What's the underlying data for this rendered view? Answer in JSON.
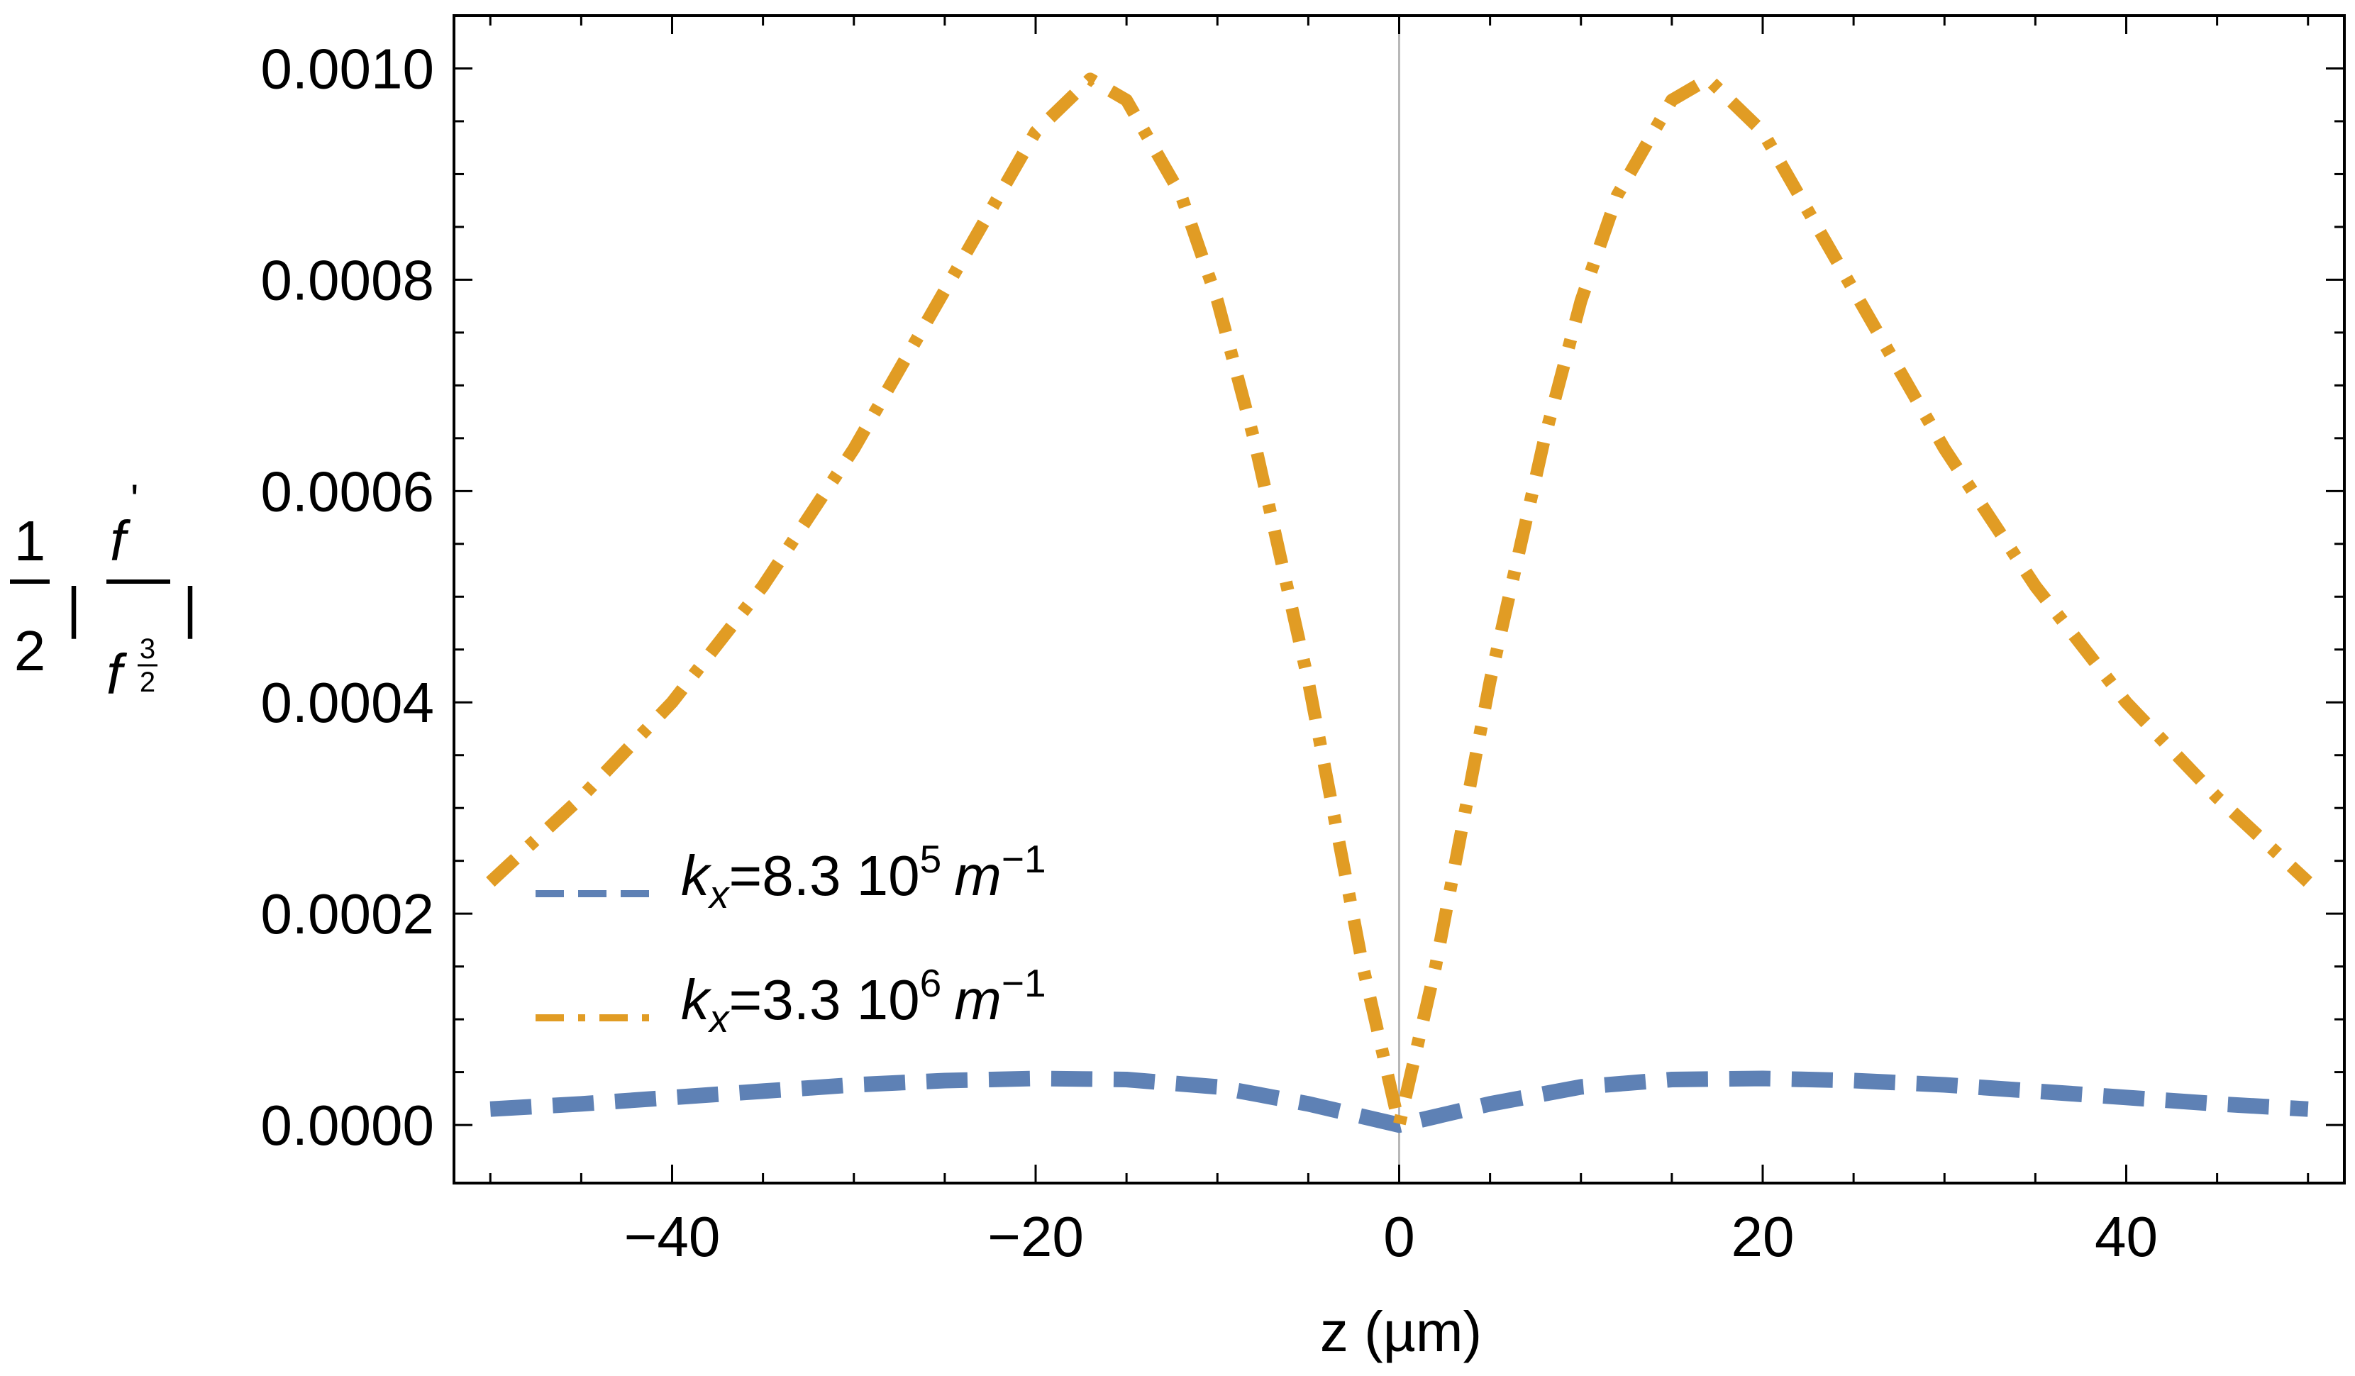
{
  "chart_data": {
    "type": "line",
    "title": "",
    "xlabel": "z (µm)",
    "ylabel": {
      "coefficient_num": "1",
      "coefficient_den": "2",
      "numerator": "f",
      "numerator_prime": "'",
      "denominator": "f",
      "den_exp_num": "3",
      "den_exp_den": "2",
      "bar": "|"
    },
    "xlim": [
      -52,
      52
    ],
    "ylim": [
      -5.5e-05,
      0.00105
    ],
    "xticks": [
      -40,
      -20,
      0,
      20,
      40
    ],
    "xtick_labels": [
      "−40",
      "−20",
      "0",
      "20",
      "40"
    ],
    "yticks": [
      0.0,
      0.0002,
      0.0004,
      0.0006,
      0.0008,
      0.001
    ],
    "ytick_labels": [
      "0.0000",
      "0.0002",
      "0.0004",
      "0.0006",
      "0.0008",
      "0.0010"
    ],
    "grid": false,
    "legend_placement": "lower-left",
    "series": [
      {
        "name": "kx=8.3 10^5 m^-1",
        "legend": {
          "k": "k",
          "sub": "x",
          "value": "=8.3 10",
          "exp": "5",
          "unit": "m",
          "unit_exp": "−1"
        },
        "color": "#5E81B5",
        "style": "dashed",
        "x": [
          -50,
          -45,
          -40,
          -35,
          -30,
          -25,
          -20,
          -15,
          -10,
          -5,
          0,
          5,
          10,
          15,
          20,
          25,
          30,
          35,
          40,
          45,
          50
        ],
        "y": [
          1.5e-05,
          2e-05,
          2.6e-05,
          3.2e-05,
          3.8e-05,
          4.2e-05,
          4.4e-05,
          4.3e-05,
          3.6e-05,
          2e-05,
          0.0,
          2e-05,
          3.6e-05,
          4.3e-05,
          4.4e-05,
          4.2e-05,
          3.8e-05,
          3.2e-05,
          2.6e-05,
          2e-05,
          1.5e-05
        ]
      },
      {
        "name": "kx=3.3 10^6 m^-1",
        "legend": {
          "k": "k",
          "sub": "x",
          "value": "=3.3 10",
          "exp": "6",
          "unit": "m",
          "unit_exp": "−1"
        },
        "color": "#E19C24",
        "style": "dashdot",
        "x": [
          -50,
          -45,
          -40,
          -35,
          -30,
          -25,
          -20,
          -17,
          -15,
          -12,
          -10,
          -8,
          -5,
          -2,
          0,
          2,
          5,
          8,
          10,
          12,
          15,
          17,
          20,
          25,
          30,
          35,
          40,
          45,
          50
        ],
        "y": [
          0.00023,
          0.00031,
          0.0004,
          0.00051,
          0.00064,
          0.00079,
          0.00094,
          0.00099,
          0.00097,
          0.00088,
          0.00078,
          0.00065,
          0.00042,
          0.00015,
          0.0,
          0.00015,
          0.00042,
          0.00065,
          0.00078,
          0.00088,
          0.00097,
          0.00099,
          0.00094,
          0.00079,
          0.00064,
          0.00051,
          0.0004,
          0.00031,
          0.00023
        ]
      }
    ]
  }
}
